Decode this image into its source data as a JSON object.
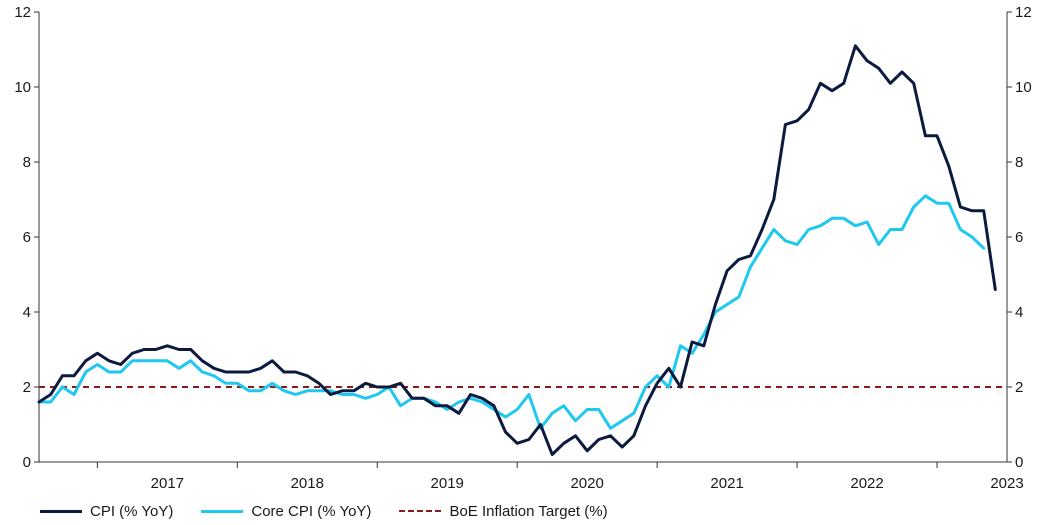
{
  "chart_data": {
    "type": "line",
    "title": "",
    "xlabel": "",
    "ylabel": "",
    "ylim": [
      0,
      12
    ],
    "yticks": [
      0,
      2,
      4,
      6,
      8,
      10,
      12
    ],
    "xlim": [
      2016.583,
      2023.5
    ],
    "year_labels": [
      "2017",
      "2018",
      "2019",
      "2020",
      "2021",
      "2022",
      "2023"
    ],
    "x_start": "2016-08",
    "x_frequency": "monthly",
    "legend_position": "bottom",
    "grid": false,
    "series": [
      {
        "name": "CPI (% YoY)",
        "color": "#0b1a3e",
        "values": [
          1.6,
          1.8,
          2.3,
          2.3,
          2.7,
          2.9,
          2.7,
          2.6,
          2.9,
          3.0,
          3.0,
          3.1,
          3.0,
          3.0,
          2.7,
          2.5,
          2.4,
          2.4,
          2.4,
          2.5,
          2.7,
          2.4,
          2.4,
          2.3,
          2.1,
          1.8,
          1.9,
          1.9,
          2.1,
          2.0,
          2.0,
          2.1,
          1.7,
          1.7,
          1.5,
          1.5,
          1.3,
          1.8,
          1.7,
          1.5,
          0.8,
          0.5,
          0.6,
          1.0,
          0.2,
          0.5,
          0.7,
          0.3,
          0.6,
          0.7,
          0.4,
          0.7,
          1.5,
          2.1,
          2.5,
          2.0,
          3.2,
          3.1,
          4.2,
          5.1,
          5.4,
          5.5,
          6.2,
          7.0,
          9.0,
          9.1,
          9.4,
          10.1,
          9.9,
          10.1,
          11.1,
          10.7,
          10.5,
          10.1,
          10.4,
          10.1,
          8.7,
          8.7,
          7.9,
          6.8,
          6.7,
          6.7,
          4.6
        ]
      },
      {
        "name": "Core CPI (% YoY)",
        "color": "#1ec8f0",
        "values": [
          1.6,
          1.6,
          2.0,
          1.8,
          2.4,
          2.6,
          2.4,
          2.4,
          2.7,
          2.7,
          2.7,
          2.7,
          2.5,
          2.7,
          2.4,
          2.3,
          2.1,
          2.1,
          1.9,
          1.9,
          2.1,
          1.9,
          1.8,
          1.9,
          1.9,
          1.9,
          1.8,
          1.8,
          1.7,
          1.8,
          2.0,
          1.5,
          1.7,
          1.7,
          1.6,
          1.4,
          1.6,
          1.7,
          1.6,
          1.4,
          1.2,
          1.4,
          1.8,
          0.9,
          1.3,
          1.5,
          1.1,
          1.4,
          1.4,
          0.9,
          1.1,
          1.3,
          2.0,
          2.3,
          2.0,
          3.1,
          2.9,
          3.4,
          4.0,
          4.2,
          4.4,
          5.2,
          5.7,
          6.2,
          5.9,
          5.8,
          6.2,
          6.3,
          6.5,
          6.5,
          6.3,
          6.4,
          5.8,
          6.2,
          6.2,
          6.8,
          7.1,
          6.9,
          6.9,
          6.2,
          6.0,
          5.7
        ]
      },
      {
        "name": "BoE Inflation Target (%)",
        "color": "#8b1a1a",
        "style": "dashed",
        "values": [
          2.0
        ]
      }
    ]
  }
}
